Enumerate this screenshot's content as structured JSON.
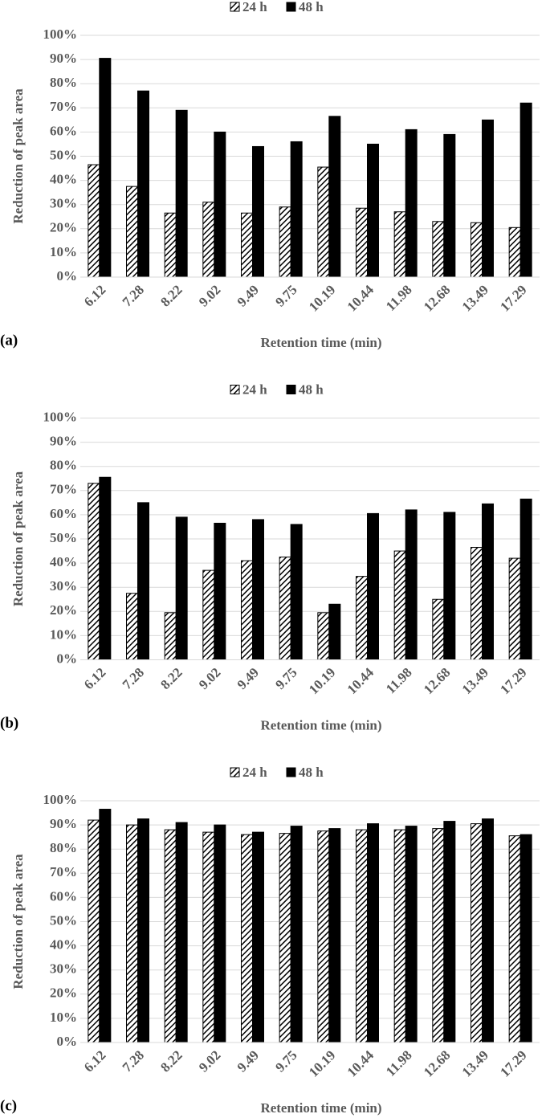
{
  "chart_data": [
    {
      "type": "bar",
      "panel": "(a)",
      "xlabel": "Retention time (min)",
      "ylabel": "Reduction of peak area",
      "categories": [
        "6.12",
        "7.28",
        "8.22",
        "9.02",
        "9.49",
        "9.75",
        "10.19",
        "10.44",
        "11.98",
        "12.68",
        "13.49",
        "17.29"
      ],
      "series": [
        {
          "name": "24 h",
          "color": "#000000",
          "hatch": true,
          "values": [
            46.5,
            37.5,
            26.5,
            31,
            26.5,
            29,
            45.5,
            28.5,
            27,
            23,
            22.5,
            20.5
          ]
        },
        {
          "name": "48 h",
          "color": "#000000",
          "hatch": false,
          "values": [
            90.5,
            77,
            69,
            60,
            54,
            56,
            66.5,
            55,
            61,
            59,
            65,
            72
          ]
        }
      ],
      "ylim": [
        0,
        100
      ],
      "yticks": [
        {
          "value": 0,
          "label": "0%"
        },
        {
          "value": 10,
          "label": "10%"
        },
        {
          "value": 20,
          "label": "20%"
        },
        {
          "value": 30,
          "label": "30%"
        },
        {
          "value": 40,
          "label": "40%"
        },
        {
          "value": 50,
          "label": "50%"
        },
        {
          "value": 60,
          "label": "60%"
        },
        {
          "value": 70,
          "label": "70%"
        },
        {
          "value": 80,
          "label": "80%"
        },
        {
          "value": 90,
          "label": "90%"
        },
        {
          "value": 100,
          "label": "100%"
        }
      ],
      "grid": true,
      "legend": "top"
    },
    {
      "type": "bar",
      "panel": "(b)",
      "xlabel": "Retention time (min)",
      "ylabel": "Reduction of peak area",
      "categories": [
        "6.12",
        "7.28",
        "8.22",
        "9.02",
        "9.49",
        "9.75",
        "10.19",
        "10.44",
        "11.98",
        "12.68",
        "13.49",
        "17.29"
      ],
      "series": [
        {
          "name": "24 h",
          "color": "#000000",
          "hatch": true,
          "values": [
            73,
            27.5,
            19.5,
            37,
            41,
            42.5,
            19.5,
            34.5,
            45,
            25,
            46.5,
            42
          ]
        },
        {
          "name": "48 h",
          "color": "#000000",
          "hatch": false,
          "values": [
            75.5,
            65,
            59,
            56.5,
            58,
            56,
            23,
            60.5,
            62,
            61,
            64.5,
            66.5
          ]
        }
      ],
      "ylim": [
        0,
        100
      ],
      "yticks": [
        {
          "value": 0,
          "label": "0%"
        },
        {
          "value": 10,
          "label": "10%"
        },
        {
          "value": 20,
          "label": "20%"
        },
        {
          "value": 30,
          "label": "30%"
        },
        {
          "value": 40,
          "label": "40%"
        },
        {
          "value": 50,
          "label": "50%"
        },
        {
          "value": 60,
          "label": "60%"
        },
        {
          "value": 70,
          "label": "70%"
        },
        {
          "value": 80,
          "label": "80%"
        },
        {
          "value": 90,
          "label": "90%"
        },
        {
          "value": 100,
          "label": "100%"
        }
      ],
      "grid": true,
      "legend": "top"
    },
    {
      "type": "bar",
      "panel": "(c)",
      "xlabel": "Retention time (min)",
      "ylabel": "Reduction of peak area",
      "categories": [
        "6.12",
        "7.28",
        "8.22",
        "9.02",
        "9.49",
        "9.75",
        "10.19",
        "10.44",
        "11.98",
        "12.68",
        "13.49",
        "17.29"
      ],
      "series": [
        {
          "name": "24 h",
          "color": "#000000",
          "hatch": true,
          "values": [
            92,
            90,
            88,
            87,
            86,
            86.5,
            87.5,
            88,
            88,
            88.5,
            90.5,
            85.5
          ]
        },
        {
          "name": "48 h",
          "color": "#000000",
          "hatch": false,
          "values": [
            96.5,
            92.5,
            91,
            90,
            87,
            89.5,
            88.5,
            90.5,
            89.5,
            91.5,
            92.5,
            86
          ]
        }
      ],
      "ylim": [
        0,
        100
      ],
      "yticks": [
        {
          "value": 0,
          "label": "0%"
        },
        {
          "value": 10,
          "label": "10%"
        },
        {
          "value": 20,
          "label": "20%"
        },
        {
          "value": 30,
          "label": "30%"
        },
        {
          "value": 40,
          "label": "40%"
        },
        {
          "value": 50,
          "label": "50%"
        },
        {
          "value": 60,
          "label": "60%"
        },
        {
          "value": 70,
          "label": "70%"
        },
        {
          "value": 80,
          "label": "80%"
        },
        {
          "value": 90,
          "label": "90%"
        },
        {
          "value": 100,
          "label": "100%"
        }
      ],
      "grid": true,
      "legend": "top"
    }
  ]
}
